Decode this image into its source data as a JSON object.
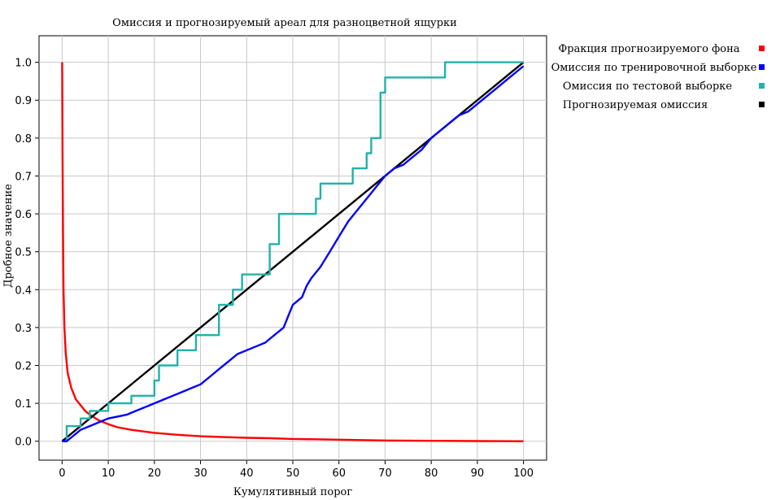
{
  "chart_data": {
    "type": "line",
    "title": "Омиссия и прогнозируемый ареал для разноцветной ящурки",
    "xlabel": "Кумулятивный порог",
    "ylabel": "Дробное значение",
    "xlim": [
      -5,
      105
    ],
    "ylim": [
      -0.05,
      1.07
    ],
    "xticks": [
      0,
      10,
      20,
      30,
      40,
      50,
      60,
      70,
      80,
      90,
      100
    ],
    "yticks": [
      0.0,
      0.1,
      0.2,
      0.3,
      0.4,
      0.5,
      0.6,
      0.7,
      0.8,
      0.9,
      1.0
    ],
    "grid": true,
    "legend_position": "right",
    "series": [
      {
        "name": "Фракция прогнозируемого фона",
        "color": "#ff0000",
        "points": [
          [
            0,
            1.0
          ],
          [
            0.1,
            0.75
          ],
          [
            0.2,
            0.55
          ],
          [
            0.3,
            0.4
          ],
          [
            0.5,
            0.3
          ],
          [
            0.8,
            0.23
          ],
          [
            1.2,
            0.18
          ],
          [
            2,
            0.14
          ],
          [
            3,
            0.11
          ],
          [
            4,
            0.095
          ],
          [
            5,
            0.08
          ],
          [
            6,
            0.07
          ],
          [
            8,
            0.055
          ],
          [
            10,
            0.045
          ],
          [
            12,
            0.037
          ],
          [
            15,
            0.03
          ],
          [
            20,
            0.022
          ],
          [
            25,
            0.017
          ],
          [
            30,
            0.013
          ],
          [
            35,
            0.011
          ],
          [
            40,
            0.009
          ],
          [
            45,
            0.008
          ],
          [
            50,
            0.006
          ],
          [
            60,
            0.004
          ],
          [
            70,
            0.002
          ],
          [
            80,
            0.001
          ],
          [
            90,
            0.0005
          ],
          [
            100,
            0.0
          ]
        ]
      },
      {
        "name": "Омиссия по тренировочной выборке",
        "color": "#0000ff",
        "points": [
          [
            0,
            0
          ],
          [
            1,
            0
          ],
          [
            2,
            0.01
          ],
          [
            3,
            0.02
          ],
          [
            4,
            0.03
          ],
          [
            6,
            0.04
          ],
          [
            8,
            0.05
          ],
          [
            10,
            0.06
          ],
          [
            12,
            0.065
          ],
          [
            14,
            0.07
          ],
          [
            16,
            0.08
          ],
          [
            18,
            0.09
          ],
          [
            20,
            0.1
          ],
          [
            22,
            0.11
          ],
          [
            24,
            0.12
          ],
          [
            26,
            0.13
          ],
          [
            28,
            0.14
          ],
          [
            30,
            0.15
          ],
          [
            32,
            0.17
          ],
          [
            34,
            0.19
          ],
          [
            36,
            0.21
          ],
          [
            38,
            0.23
          ],
          [
            40,
            0.24
          ],
          [
            42,
            0.25
          ],
          [
            44,
            0.26
          ],
          [
            46,
            0.28
          ],
          [
            48,
            0.3
          ],
          [
            49,
            0.33
          ],
          [
            50,
            0.36
          ],
          [
            52,
            0.38
          ],
          [
            53,
            0.41
          ],
          [
            54,
            0.43
          ],
          [
            56,
            0.46
          ],
          [
            58,
            0.5
          ],
          [
            60,
            0.54
          ],
          [
            62,
            0.58
          ],
          [
            64,
            0.61
          ],
          [
            66,
            0.64
          ],
          [
            68,
            0.67
          ],
          [
            70,
            0.7
          ],
          [
            72,
            0.72
          ],
          [
            74,
            0.73
          ],
          [
            76,
            0.75
          ],
          [
            78,
            0.77
          ],
          [
            80,
            0.8
          ],
          [
            82,
            0.82
          ],
          [
            84,
            0.84
          ],
          [
            86,
            0.86
          ],
          [
            88,
            0.87
          ],
          [
            90,
            0.89
          ],
          [
            92,
            0.91
          ],
          [
            94,
            0.93
          ],
          [
            96,
            0.95
          ],
          [
            98,
            0.97
          ],
          [
            100,
            0.99
          ]
        ]
      },
      {
        "name": "Омиссия по тестовой выборке",
        "color": "#20b2aa",
        "points": [
          [
            0,
            0
          ],
          [
            1,
            0
          ],
          [
            1,
            0.04
          ],
          [
            4,
            0.04
          ],
          [
            4,
            0.06
          ],
          [
            6,
            0.06
          ],
          [
            6,
            0.08
          ],
          [
            10,
            0.08
          ],
          [
            10,
            0.1
          ],
          [
            15,
            0.1
          ],
          [
            15,
            0.12
          ],
          [
            20,
            0.12
          ],
          [
            20,
            0.16
          ],
          [
            21,
            0.16
          ],
          [
            21,
            0.2
          ],
          [
            25,
            0.2
          ],
          [
            25,
            0.24
          ],
          [
            29,
            0.24
          ],
          [
            29,
            0.28
          ],
          [
            34,
            0.28
          ],
          [
            34,
            0.36
          ],
          [
            37,
            0.36
          ],
          [
            37,
            0.4
          ],
          [
            39,
            0.4
          ],
          [
            39,
            0.44
          ],
          [
            45,
            0.44
          ],
          [
            45,
            0.52
          ],
          [
            47,
            0.52
          ],
          [
            47,
            0.6
          ],
          [
            55,
            0.6
          ],
          [
            55,
            0.64
          ],
          [
            56,
            0.64
          ],
          [
            56,
            0.68
          ],
          [
            63,
            0.68
          ],
          [
            63,
            0.72
          ],
          [
            66,
            0.72
          ],
          [
            66,
            0.76
          ],
          [
            67,
            0.76
          ],
          [
            67,
            0.8
          ],
          [
            69,
            0.8
          ],
          [
            69,
            0.92
          ],
          [
            70,
            0.92
          ],
          [
            70,
            0.96
          ],
          [
            83,
            0.96
          ],
          [
            83,
            1.0
          ],
          [
            100,
            1.0
          ]
        ]
      },
      {
        "name": "Прогнозируемая омиссия",
        "color": "#000000",
        "points": [
          [
            0,
            0
          ],
          [
            100,
            1.0
          ]
        ]
      }
    ]
  }
}
